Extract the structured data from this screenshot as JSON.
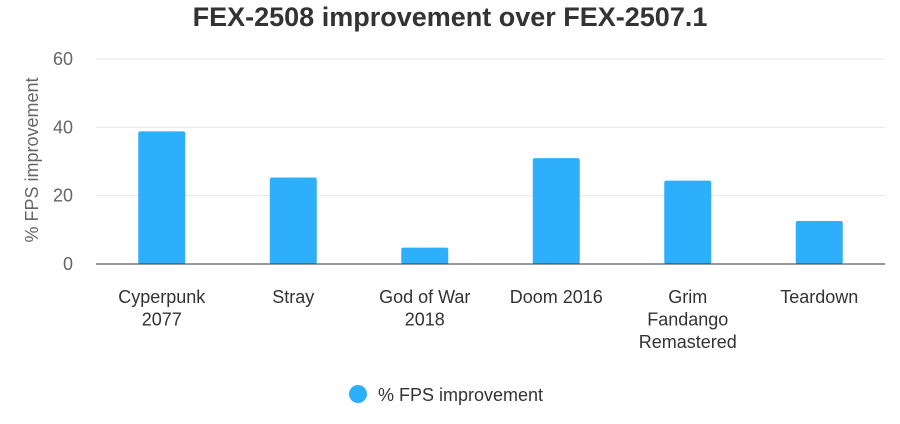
{
  "chart_data": {
    "type": "bar",
    "title": "FEX-2508 improvement over FEX-2507.1",
    "xlabel": "",
    "ylabel": "% FPS improvement",
    "ylim": [
      0,
      60
    ],
    "yticks": [
      0,
      20,
      40,
      60
    ],
    "grid": true,
    "legend_position": "bottom-center",
    "categories": [
      "Cyperpunk 2077",
      "Stray",
      "God of War 2018",
      "Doom 2016",
      "Grim Fandango Remastered",
      "Teardown"
    ],
    "series": [
      {
        "name": "% FPS improvement",
        "color": "#2eaffc",
        "values": [
          38.8,
          25.3,
          4.8,
          31.0,
          24.4,
          12.6
        ]
      }
    ]
  }
}
